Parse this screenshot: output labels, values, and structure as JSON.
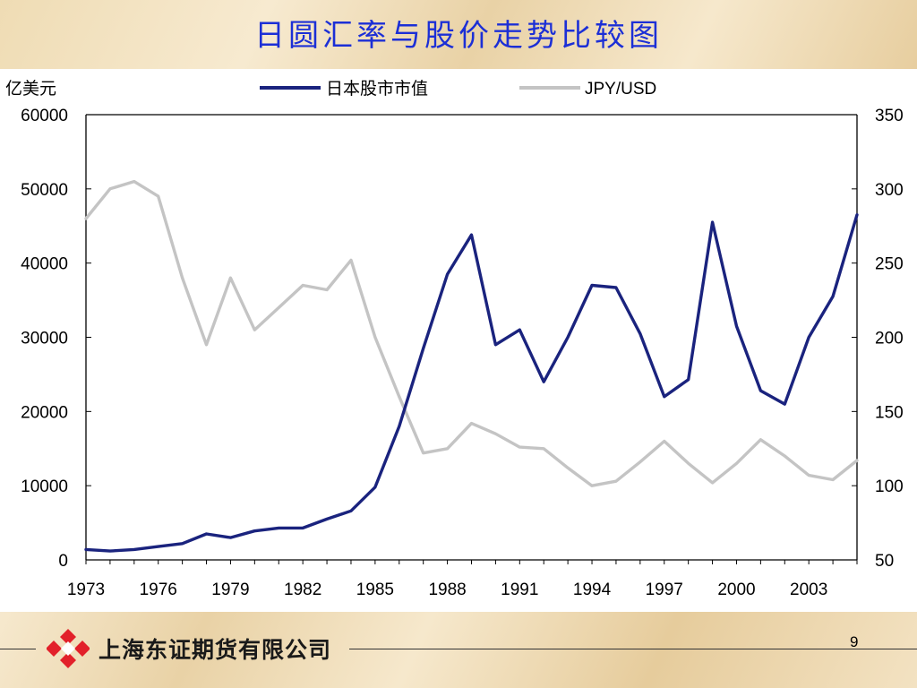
{
  "slide": {
    "title": "日圆汇率与股价走势比较图",
    "company": "上海东证期货有限公司",
    "page_number": "9"
  },
  "colors": {
    "title": "#1c2fd6",
    "series_market_cap": "#1a237e",
    "series_jpy": "#c4c4c4",
    "logo": "#e2202a"
  },
  "chart_data": {
    "type": "line",
    "title": "日圆汇率与股价走势比较图",
    "y_left_unit_label": "亿美元",
    "y_left_range": [
      0,
      60000
    ],
    "y_left_ticks": [
      "0",
      "10000",
      "20000",
      "30000",
      "40000",
      "50000",
      "60000"
    ],
    "y_right_range": [
      50,
      350
    ],
    "y_right_ticks": [
      "50",
      "100",
      "150",
      "200",
      "250",
      "300",
      "350"
    ],
    "x_range": [
      1973,
      2005
    ],
    "x_tick_labels": [
      "1973",
      "1976",
      "1979",
      "1982",
      "1985",
      "1988",
      "1991",
      "1994",
      "1997",
      "2000",
      "2003"
    ],
    "legend_position": "top",
    "grid": false,
    "x": [
      1973,
      1974,
      1975,
      1976,
      1977,
      1978,
      1979,
      1980,
      1981,
      1982,
      1983,
      1984,
      1985,
      1986,
      1987,
      1988,
      1989,
      1990,
      1991,
      1992,
      1993,
      1994,
      1995,
      1996,
      1997,
      1998,
      1999,
      2000,
      2001,
      2002,
      2003,
      2004,
      2005
    ],
    "series": [
      {
        "name": "日本股市市值",
        "axis": "left",
        "values": [
          1400,
          1200,
          1400,
          1800,
          2200,
          3500,
          3000,
          3900,
          4300,
          4300,
          5500,
          6600,
          9800,
          18000,
          28500,
          38500,
          43800,
          29000,
          31000,
          24000,
          30000,
          37000,
          36700,
          30500,
          22000,
          24300,
          45500,
          31500,
          22800,
          21000,
          30000,
          35500,
          46500
        ]
      },
      {
        "name": "JPY/USD",
        "axis": "right",
        "values": [
          280,
          300,
          305,
          295,
          240,
          195,
          240,
          205,
          220,
          235,
          232,
          252,
          200,
          160,
          122,
          125,
          142,
          135,
          126,
          125,
          112,
          100,
          103,
          116,
          130,
          115,
          102,
          115,
          131,
          120,
          107,
          104,
          117
        ]
      }
    ]
  }
}
